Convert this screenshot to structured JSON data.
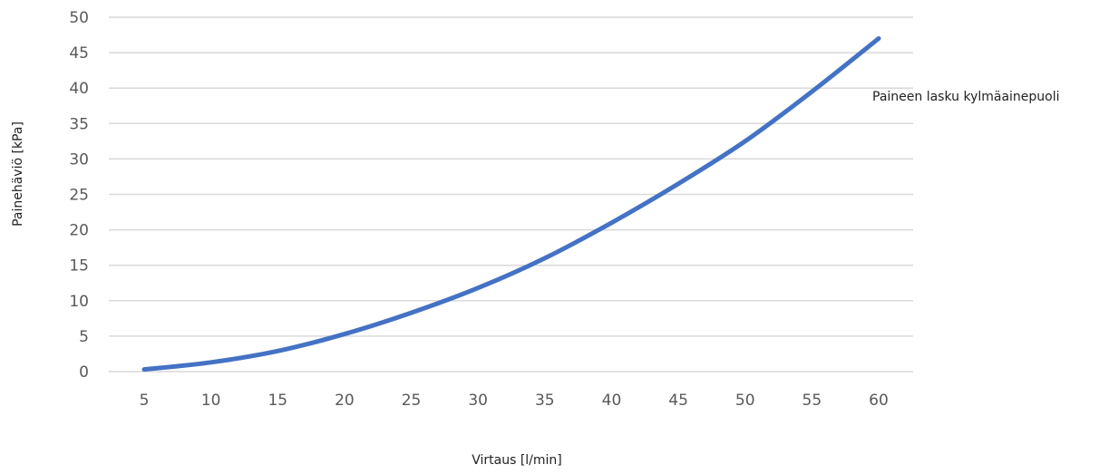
{
  "chart_data": {
    "type": "line",
    "title": "",
    "xlabel": "Virtaus [l/min]",
    "ylabel": "Painehäviö [kPa]",
    "x": [
      5,
      10,
      15,
      20,
      25,
      30,
      35,
      40,
      45,
      50,
      55,
      60
    ],
    "xlim": [
      5,
      60
    ],
    "ylim": [
      0,
      50
    ],
    "yticks": [
      0,
      5,
      10,
      15,
      20,
      25,
      30,
      35,
      40,
      45,
      50
    ],
    "xticks": [
      5,
      10,
      15,
      20,
      25,
      30,
      35,
      40,
      45,
      50,
      55,
      60
    ],
    "grid": true,
    "series": [
      {
        "name": "Paineen lasku kylmäainepuoli",
        "color": "#4472c4",
        "values": [
          0.3,
          1.3,
          2.9,
          5.3,
          8.3,
          11.8,
          16.0,
          21.0,
          26.5,
          32.5,
          39.5,
          47.0
        ]
      }
    ]
  }
}
